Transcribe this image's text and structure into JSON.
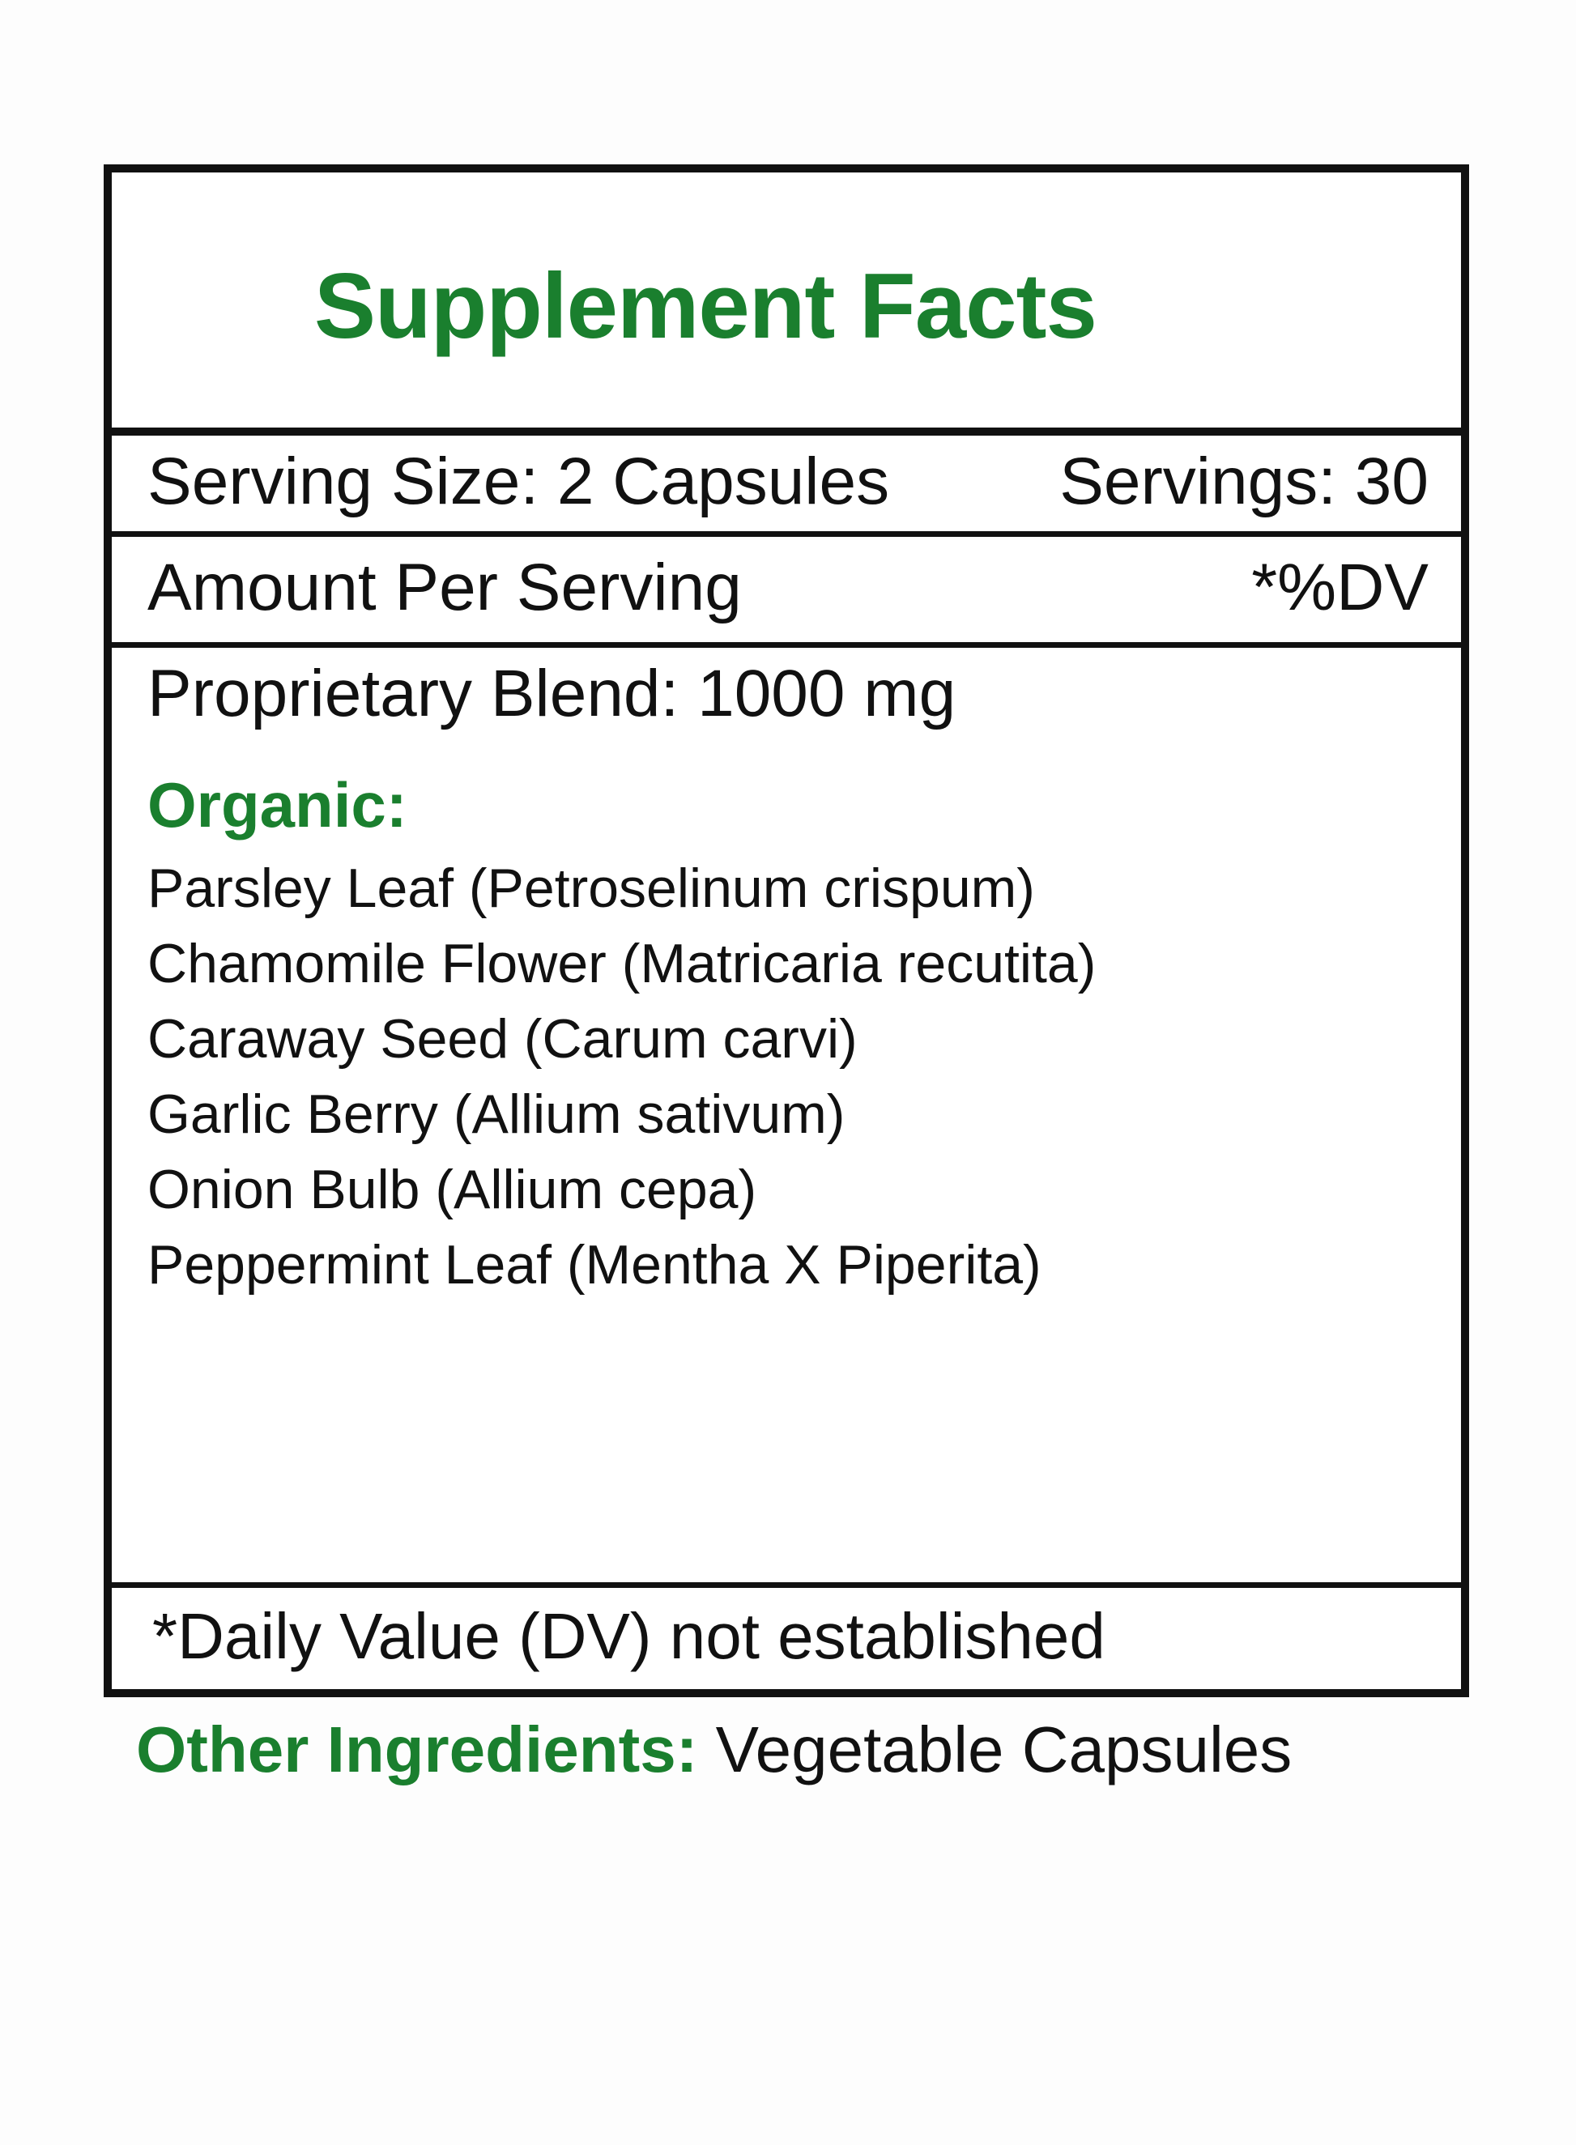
{
  "title": "Supplement Facts",
  "serving": {
    "size": "Serving Size: 2 Capsules",
    "servings": "Servings: 30"
  },
  "header": {
    "amount": "Amount Per Serving",
    "dv": "*%DV"
  },
  "blend": "Proprietary Blend: 1000 mg",
  "organic_label": "Organic:",
  "ingredients": [
    "Parsley Leaf (Petroselinum crispum)",
    "Chamomile Flower (Matricaria recutita)",
    "Caraway Seed (Carum carvi)",
    "Garlic Berry (Allium sativum)",
    "Onion Bulb (Allium cepa)",
    "Peppermint Leaf (Mentha X Piperita)"
  ],
  "footnote": "*Daily Value (DV) not established",
  "other": {
    "label": "Other Ingredients:",
    "value": "Vegetable Capsules"
  },
  "colors": {
    "accent": "#1a7f2e",
    "border": "#111111"
  }
}
